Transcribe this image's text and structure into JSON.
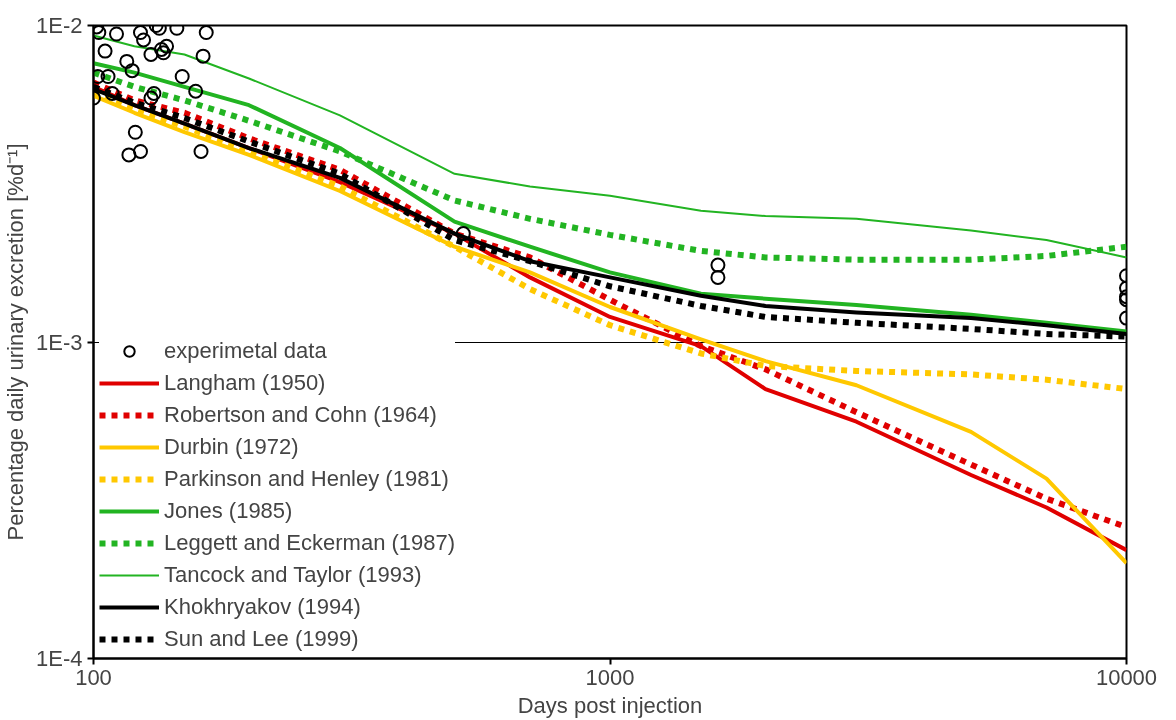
{
  "chart_data": {
    "type": "line",
    "xlabel": "Days post injection",
    "ylabel": "Percentage daily urinary excretion [%d⁻¹]",
    "log": "xy",
    "grid": "y",
    "legend": "bottom left",
    "xlim": [
      100,
      10000
    ],
    "ylim": [
      0.0001,
      0.01
    ],
    "xticks": [
      100,
      1000,
      10000
    ],
    "yticks": [
      {
        "value": 0.0001,
        "label": "1E-4"
      },
      {
        "value": 0.001,
        "label": "1E-3"
      },
      {
        "value": 0.01,
        "label": "1E-2"
      }
    ],
    "x": [
      100,
      120,
      150,
      200,
      300,
      500,
      700,
      1000,
      1500,
      2000,
      3000,
      5000,
      7000,
      10000
    ],
    "series": [
      {
        "name": "experimetal data",
        "type": "scatter",
        "marker": "circle",
        "color": "#000000",
        "x": [
          101.4,
          102.4,
          110.8,
          123.3,
          132.2,
          134.1,
          145,
          165.3,
          105.3,
          125,
          129.2,
          135.4,
          138.5,
          136.6,
          163,
          116,
          118.8,
          148.5,
          101.9,
          106.7,
          157.7,
          130.9,
          129.2,
          108.7,
          100,
          120.5,
          123.3,
          117.1,
          161.5,
          520,
          1618,
          1618,
          10000,
          10000,
          10000,
          10000,
          10000
        ],
        "values": [
          0.0099,
          0.0095,
          0.0094,
          0.0095,
          0.01,
          0.0098,
          0.0098,
          0.0095,
          0.0083,
          0.009,
          0.0081,
          0.0084,
          0.0086,
          0.0082,
          0.008,
          0.0077,
          0.0072,
          0.0069,
          0.0069,
          0.0069,
          0.0062,
          0.0061,
          0.0059,
          0.0061,
          0.0059,
          0.0046,
          0.004,
          0.0039,
          0.004,
          0.0022,
          0.00175,
          0.0016,
          0.00162,
          0.00148,
          0.00139,
          0.00136,
          0.00119
        ]
      },
      {
        "name": "Langham (1950)",
        "color": "#e00000",
        "line_style": "solid",
        "values": [
          0.0064,
          0.0056,
          0.0049,
          0.0041,
          0.0032,
          0.0022,
          0.0016,
          0.0012,
          0.00097,
          0.00071,
          0.00056,
          0.00038,
          0.0003,
          0.00022
        ]
      },
      {
        "name": "Robertson and Cohn (1964)",
        "color": "#e00000",
        "line_style": "dotted",
        "values": [
          0.0066,
          0.0058,
          0.0053,
          0.0044,
          0.0035,
          0.0022,
          0.00185,
          0.00136,
          0.00097,
          0.00082,
          0.0006,
          0.00041,
          0.00032,
          0.00026
        ]
      },
      {
        "name": "Durbin (1972)",
        "color": "#ffc800",
        "line_style": "solid",
        "values": [
          0.006,
          0.0053,
          0.0046,
          0.0039,
          0.003,
          0.002,
          0.00166,
          0.00129,
          0.00102,
          0.00087,
          0.00073,
          0.00052,
          0.00037,
          0.0002
        ]
      },
      {
        "name": "Parkinson and Henley (1981)",
        "color": "#ffc800",
        "line_style": "dotted",
        "values": [
          0.0061,
          0.0054,
          0.0048,
          0.004,
          0.0031,
          0.002,
          0.00147,
          0.00113,
          0.00092,
          0.00084,
          0.00081,
          0.00079,
          0.00076,
          0.00071
        ]
      },
      {
        "name": "Jones (1985)",
        "color": "#22b422",
        "line_style": "solid",
        "values": [
          0.0076,
          0.0071,
          0.0064,
          0.0056,
          0.0041,
          0.0024,
          0.002,
          0.00166,
          0.00142,
          0.00137,
          0.00131,
          0.00122,
          0.00115,
          0.00108
        ]
      },
      {
        "name": "Leggett and Eckerman (1987)",
        "color": "#22b422",
        "line_style": "dotted",
        "values": [
          0.0071,
          0.0064,
          0.0058,
          0.005,
          0.004,
          0.0028,
          0.00245,
          0.00218,
          0.00194,
          0.00185,
          0.00182,
          0.00182,
          0.00187,
          0.002
        ]
      },
      {
        "name": "Tancock and Taylor (1993)",
        "color": "#22b422",
        "line_style": "solid",
        "values": [
          0.0093,
          0.0086,
          0.0081,
          0.0068,
          0.0052,
          0.0034,
          0.0031,
          0.0029,
          0.0026,
          0.0025,
          0.00245,
          0.00225,
          0.0021,
          0.00185
        ]
      },
      {
        "name": "Khokhryakov (1994)",
        "color": "#000000",
        "line_style": "solid",
        "values": [
          0.0063,
          0.0056,
          0.0049,
          0.0041,
          0.0033,
          0.0022,
          0.0018,
          0.0016,
          0.0014,
          0.0013,
          0.00124,
          0.00119,
          0.00113,
          0.00106
        ]
      },
      {
        "name": "Sun and Lee (1999)",
        "color": "#000000",
        "line_style": "dotted",
        "values": [
          0.0064,
          0.0057,
          0.0051,
          0.0043,
          0.0034,
          0.0021,
          0.0018,
          0.0015,
          0.0013,
          0.0012,
          0.00115,
          0.0011,
          0.00106,
          0.00104
        ]
      }
    ]
  }
}
